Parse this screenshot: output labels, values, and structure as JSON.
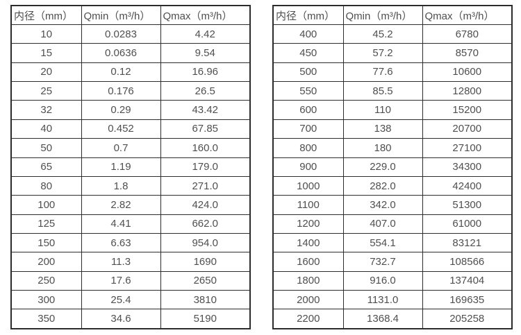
{
  "page": {
    "background_color": "#ffffff",
    "border_color": "#2b2b2b",
    "text_color": "#4f4f4f"
  },
  "tables": [
    {
      "name": "flow-table-small-diameter",
      "headers": [
        "内径（mm）",
        "Qmin（m³/h）",
        "Qmax（m³/h）"
      ],
      "rows": [
        [
          "10",
          "0.0283",
          "4.42"
        ],
        [
          "15",
          "0.0636",
          "9.54"
        ],
        [
          "20",
          "0.12",
          "16.96"
        ],
        [
          "25",
          "0.176",
          "26.5"
        ],
        [
          "32",
          "0.29",
          "43.42"
        ],
        [
          "40",
          "0.452",
          "67.85"
        ],
        [
          "50",
          "0.7",
          "160.0"
        ],
        [
          "65",
          "1.19",
          "179.0"
        ],
        [
          "80",
          "1.8",
          "271.0"
        ],
        [
          "100",
          "2.82",
          "424.0"
        ],
        [
          "125",
          "4.41",
          "662.0"
        ],
        [
          "150",
          "6.63",
          "954.0"
        ],
        [
          "200",
          "11.3",
          "1690"
        ],
        [
          "250",
          "17.6",
          "2650"
        ],
        [
          "300",
          "25.4",
          "3810"
        ],
        [
          "350",
          "34.6",
          "5190"
        ]
      ]
    },
    {
      "name": "flow-table-large-diameter",
      "headers": [
        "内径（mm）",
        "Qmin（m³/h）",
        "Qmax（m³/h）"
      ],
      "rows": [
        [
          "400",
          "45.2",
          "6780"
        ],
        [
          "450",
          "57.2",
          "8570"
        ],
        [
          "500",
          "77.6",
          "10600"
        ],
        [
          "550",
          "85.5",
          "12800"
        ],
        [
          "600",
          "110",
          "15200"
        ],
        [
          "700",
          "138",
          "20700"
        ],
        [
          "800",
          "180",
          "27100"
        ],
        [
          "900",
          "229.0",
          "34300"
        ],
        [
          "1000",
          "282.0",
          "42400"
        ],
        [
          "1100",
          "342.0",
          "51300"
        ],
        [
          "1200",
          "407.0",
          "61000"
        ],
        [
          "1400",
          "554.1",
          "83121"
        ],
        [
          "1600",
          "732.7",
          "108566"
        ],
        [
          "1800",
          "916.0",
          "137404"
        ],
        [
          "2000",
          "1131.0",
          "169635"
        ],
        [
          "2200",
          "1368.4",
          "205258"
        ]
      ]
    }
  ],
  "chart_data": [
    {
      "type": "table",
      "title": "",
      "columns": [
        "内径（mm）",
        "Qmin（m³/h）",
        "Qmax（m³/h）"
      ],
      "diameter_mm": [
        10,
        15,
        20,
        25,
        32,
        40,
        50,
        65,
        80,
        100,
        125,
        150,
        200,
        250,
        300,
        350
      ],
      "qmin_m3h": [
        0.0283,
        0.0636,
        0.12,
        0.176,
        0.29,
        0.452,
        0.7,
        1.19,
        1.8,
        2.82,
        4.41,
        6.63,
        11.3,
        17.6,
        25.4,
        34.6
      ],
      "qmax_m3h": [
        4.42,
        9.54,
        16.96,
        26.5,
        43.42,
        67.85,
        160.0,
        179.0,
        271.0,
        424.0,
        662.0,
        954.0,
        1690,
        2650,
        3810,
        5190
      ]
    },
    {
      "type": "table",
      "title": "",
      "columns": [
        "内径（mm）",
        "Qmin（m³/h）",
        "Qmax（m³/h）"
      ],
      "diameter_mm": [
        400,
        450,
        500,
        550,
        600,
        700,
        800,
        900,
        1000,
        1100,
        1200,
        1400,
        1600,
        1800,
        2000,
        2200
      ],
      "qmin_m3h": [
        45.2,
        57.2,
        77.6,
        85.5,
        110,
        138,
        180,
        229.0,
        282.0,
        342.0,
        407.0,
        554.1,
        732.7,
        916.0,
        1131.0,
        1368.4
      ],
      "qmax_m3h": [
        6780,
        8570,
        10600,
        12800,
        15200,
        20700,
        27100,
        34300,
        42400,
        51300,
        61000,
        83121,
        108566,
        137404,
        169635,
        205258
      ]
    }
  ]
}
